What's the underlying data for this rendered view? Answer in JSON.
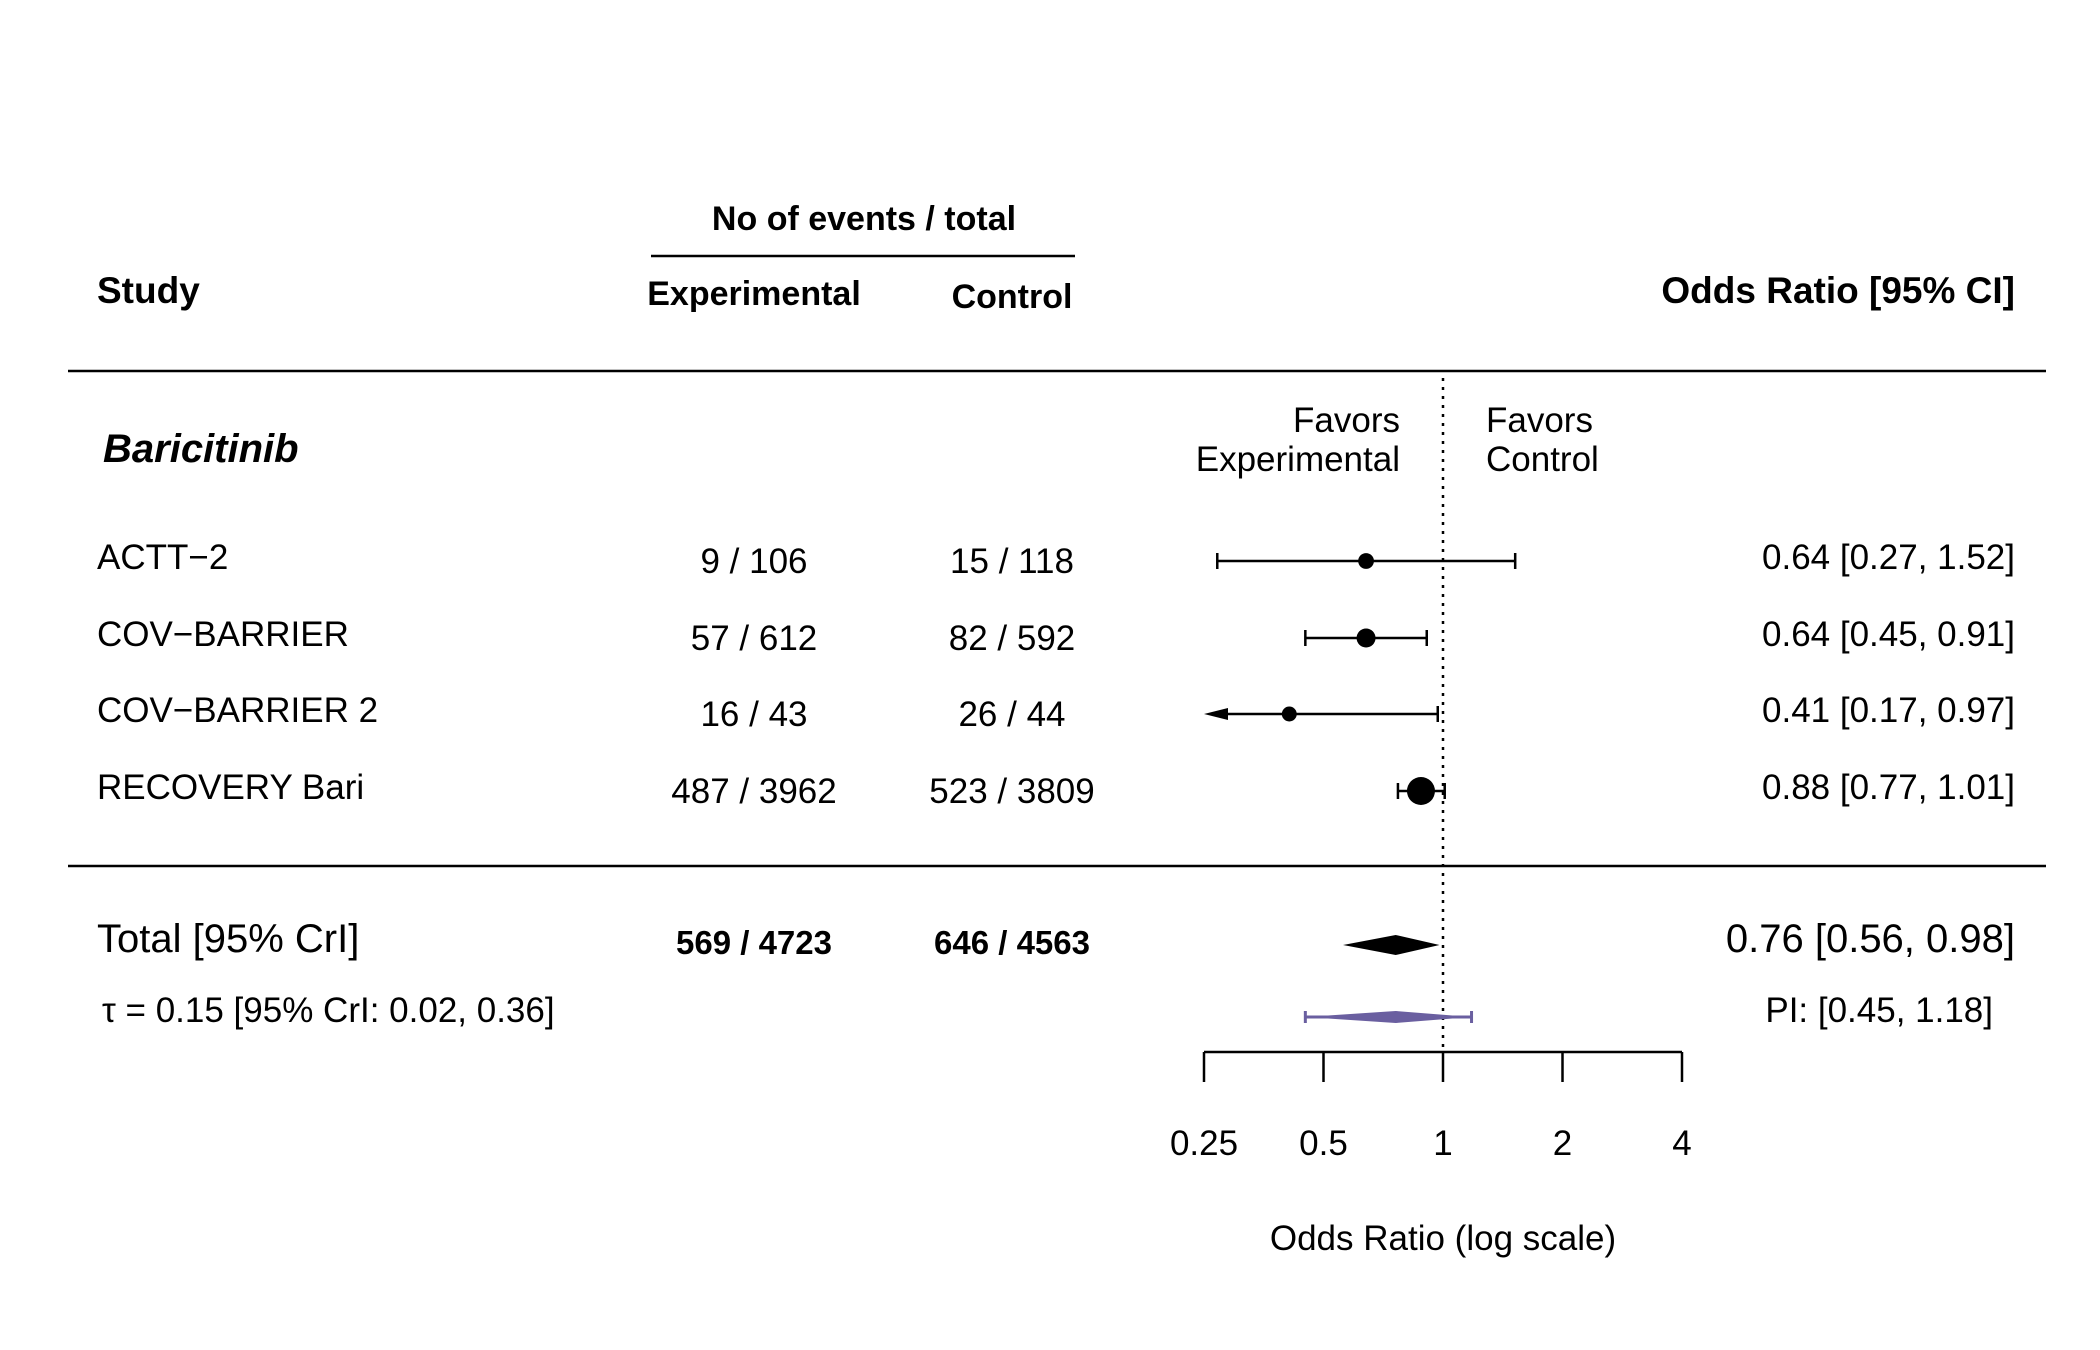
{
  "header": {
    "group_label": "No of events / total",
    "study": "Study",
    "experimental": "Experimental",
    "control": "Control",
    "effect": "Odds Ratio [95% CI]"
  },
  "subgroup": "Baricitinib",
  "favors_left": [
    "Favors",
    "Experimental"
  ],
  "favors_right": [
    "Favors",
    "Control"
  ],
  "total": {
    "label": "Total [95% CrI]",
    "exp": "569 / 4723",
    "ctl": "646 / 4563",
    "text": "0.76 [0.56, 0.98]"
  },
  "tau": {
    "label": "τ = 0.15 [95% CrI: 0.02, 0.36]",
    "pi_text": "PI: [0.45, 1.18]"
  },
  "axis": {
    "title": "Odds Ratio (log scale)",
    "ticks": [
      "0.25",
      "0.5",
      "1",
      "2",
      "4"
    ]
  },
  "chart_data": {
    "type": "forest",
    "scale": "log",
    "xlim": [
      0.25,
      4
    ],
    "ticks": [
      0.25,
      0.5,
      1,
      2,
      4
    ],
    "reference_line": 1,
    "studies": [
      {
        "name": "ACTT−2",
        "exp": "9 / 106",
        "ctl": "15 / 118",
        "or": 0.64,
        "lo": 0.27,
        "hi": 1.52,
        "text": "0.64 [0.27, 1.52]",
        "weight": 0.15
      },
      {
        "name": "COV−BARRIER",
        "exp": "57 / 612",
        "ctl": "82 / 592",
        "or": 0.64,
        "lo": 0.45,
        "hi": 0.91,
        "text": "0.64 [0.45, 0.91]",
        "weight": 0.3
      },
      {
        "name": "COV−BARRIER 2",
        "exp": "16 / 43",
        "ctl": "26 / 44",
        "or": 0.41,
        "lo": 0.17,
        "hi": 0.97,
        "text": "0.41 [0.17, 0.97]",
        "weight": 0.12
      },
      {
        "name": "RECOVERY Bari",
        "exp": "487 / 3962",
        "ctl": "523 / 3809",
        "or": 0.88,
        "lo": 0.77,
        "hi": 1.01,
        "text": "0.88 [0.77, 1.01]",
        "weight": 1.0
      }
    ],
    "pooled": {
      "or": 0.76,
      "lo": 0.56,
      "hi": 0.98
    },
    "prediction_interval": {
      "lo": 0.45,
      "hi": 1.18,
      "color": "#6a5fa0"
    }
  }
}
